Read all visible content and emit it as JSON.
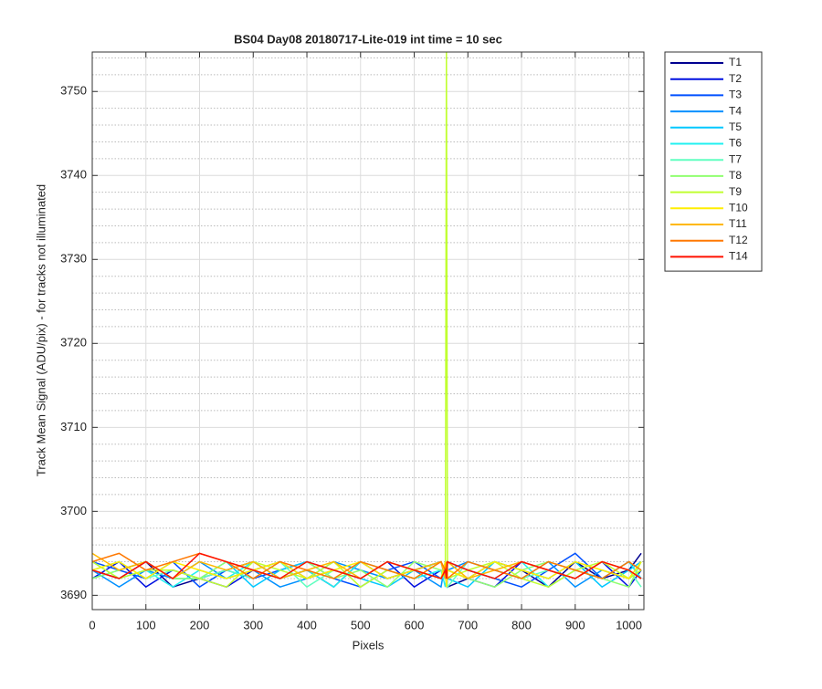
{
  "chart_data": {
    "type": "line",
    "title": "BS04 Day08 20180717-Lite-019 int time = 10 sec",
    "x_label": "Pixels",
    "y_label": "Track Mean Signal (ADU/pix) - for tracks not illuminated",
    "x": [
      0,
      50,
      100,
      150,
      200,
      250,
      300,
      350,
      400,
      450,
      500,
      550,
      600,
      650,
      658,
      660,
      662,
      700,
      750,
      800,
      850,
      900,
      950,
      1000,
      1023
    ],
    "series": [
      {
        "name": "T1",
        "color": "#000090",
        "values": [
          3693,
          3692,
          3694,
          3691,
          3692,
          3693,
          3694,
          3692,
          3693,
          3691,
          3694,
          3692,
          3693,
          3694,
          3692,
          3693,
          3691,
          3692,
          3694,
          3693,
          3691,
          3694,
          3692,
          3693,
          3695
        ]
      },
      {
        "name": "T2",
        "color": "#0010e0",
        "values": [
          3692,
          3694,
          3691,
          3693,
          3692,
          3691,
          3693,
          3694,
          3692,
          3693,
          3692,
          3694,
          3691,
          3693,
          3692,
          3694,
          3693,
          3692,
          3691,
          3694,
          3693,
          3692,
          3694,
          3691,
          3693
        ]
      },
      {
        "name": "T3",
        "color": "#0050ff",
        "values": [
          3694,
          3693,
          3692,
          3694,
          3691,
          3693,
          3692,
          3693,
          3694,
          3692,
          3691,
          3693,
          3694,
          3692,
          3693,
          3691,
          3694,
          3693,
          3692,
          3691,
          3693,
          3695,
          3692,
          3694,
          3692
        ]
      },
      {
        "name": "T4",
        "color": "#0090ff",
        "values": [
          3693,
          3691,
          3693,
          3692,
          3694,
          3692,
          3693,
          3691,
          3692,
          3694,
          3693,
          3692,
          3693,
          3691,
          3694,
          3692,
          3693,
          3694,
          3693,
          3692,
          3694,
          3691,
          3693,
          3692,
          3693
        ]
      },
      {
        "name": "T5",
        "color": "#00c8ff",
        "values": [
          3692,
          3693,
          3694,
          3692,
          3692,
          3694,
          3691,
          3693,
          3694,
          3693,
          3692,
          3691,
          3693,
          3694,
          3692,
          3693,
          3692,
          3691,
          3694,
          3693,
          3692,
          3694,
          3691,
          3693,
          3694
        ]
      },
      {
        "name": "T6",
        "color": "#20f0f0",
        "values": [
          3694,
          3692,
          3693,
          3691,
          3693,
          3692,
          3694,
          3692,
          3693,
          3691,
          3694,
          3693,
          3692,
          3693,
          3691,
          3692,
          3694,
          3693,
          3692,
          3694,
          3691,
          3693,
          3692,
          3694,
          3692
        ]
      },
      {
        "name": "T7",
        "color": "#60ffc0",
        "values": [
          3693,
          3694,
          3692,
          3693,
          3692,
          3693,
          3692,
          3694,
          3691,
          3693,
          3692,
          3694,
          3693,
          3692,
          3694,
          3693,
          3691,
          3694,
          3693,
          3692,
          3693,
          3692,
          3694,
          3693,
          3691
        ]
      },
      {
        "name": "T8",
        "color": "#90ff70",
        "values": [
          3692,
          3693,
          3694,
          3692,
          3692,
          3694,
          3693,
          3692,
          3694,
          3692,
          3693,
          3691,
          3694,
          3693,
          3692,
          3694,
          3693,
          3692,
          3691,
          3693,
          3694,
          3693,
          3692,
          3691,
          3694
        ]
      },
      {
        "name": "T9",
        "color": "#c0ff30",
        "values": [
          3694,
          3692,
          3693,
          3693,
          3692,
          3691,
          3694,
          3693,
          3692,
          3694,
          3691,
          3693,
          3692,
          3694,
          3693,
          3755,
          3692,
          3693,
          3694,
          3692,
          3691,
          3693,
          3694,
          3692,
          3693
        ]
      },
      {
        "name": "T10",
        "color": "#ffee00",
        "values": [
          3693,
          3694,
          3692,
          3694,
          3693,
          3692,
          3693,
          3694,
          3692,
          3693,
          3694,
          3692,
          3693,
          3692,
          3694,
          3691,
          3693,
          3692,
          3694,
          3693,
          3692,
          3694,
          3693,
          3692,
          3694
        ]
      },
      {
        "name": "T11",
        "color": "#ffb800",
        "values": [
          3695,
          3693,
          3694,
          3692,
          3694,
          3693,
          3694,
          3692,
          3693,
          3694,
          3692,
          3694,
          3693,
          3694,
          3692,
          3693,
          3694,
          3692,
          3693,
          3694,
          3693,
          3692,
          3694,
          3693,
          3692
        ]
      },
      {
        "name": "T12",
        "color": "#ff7800",
        "values": [
          3694,
          3695,
          3693,
          3694,
          3695,
          3694,
          3692,
          3694,
          3693,
          3692,
          3694,
          3693,
          3692,
          3694,
          3693,
          3694,
          3692,
          3694,
          3693,
          3692,
          3694,
          3693,
          3692,
          3694,
          3693
        ]
      },
      {
        "name": "T14",
        "color": "#ff1000",
        "values": [
          3693,
          3692,
          3694,
          3692,
          3695,
          3694,
          3693,
          3692,
          3694,
          3693,
          3692,
          3694,
          3693,
          3692,
          3693,
          3692,
          3694,
          3693,
          3692,
          3694,
          3693,
          3692,
          3694,
          3693,
          3692
        ]
      }
    ],
    "xlim": [
      0,
      1028
    ],
    "ylim": [
      3688.3,
      3754.7
    ],
    "xticks": [
      0,
      100,
      200,
      300,
      400,
      500,
      600,
      700,
      800,
      900,
      1000
    ],
    "yticks": [
      3690,
      3700,
      3710,
      3720,
      3730,
      3740,
      3750
    ],
    "yminorticks": [
      3692,
      3694,
      3696,
      3698,
      3702,
      3704,
      3706,
      3708,
      3712,
      3714,
      3716,
      3718,
      3722,
      3724,
      3726,
      3728,
      3732,
      3734,
      3736,
      3738,
      3742,
      3744,
      3746,
      3748,
      3752,
      3754
    ],
    "grid": true,
    "legend": "outside-right"
  }
}
